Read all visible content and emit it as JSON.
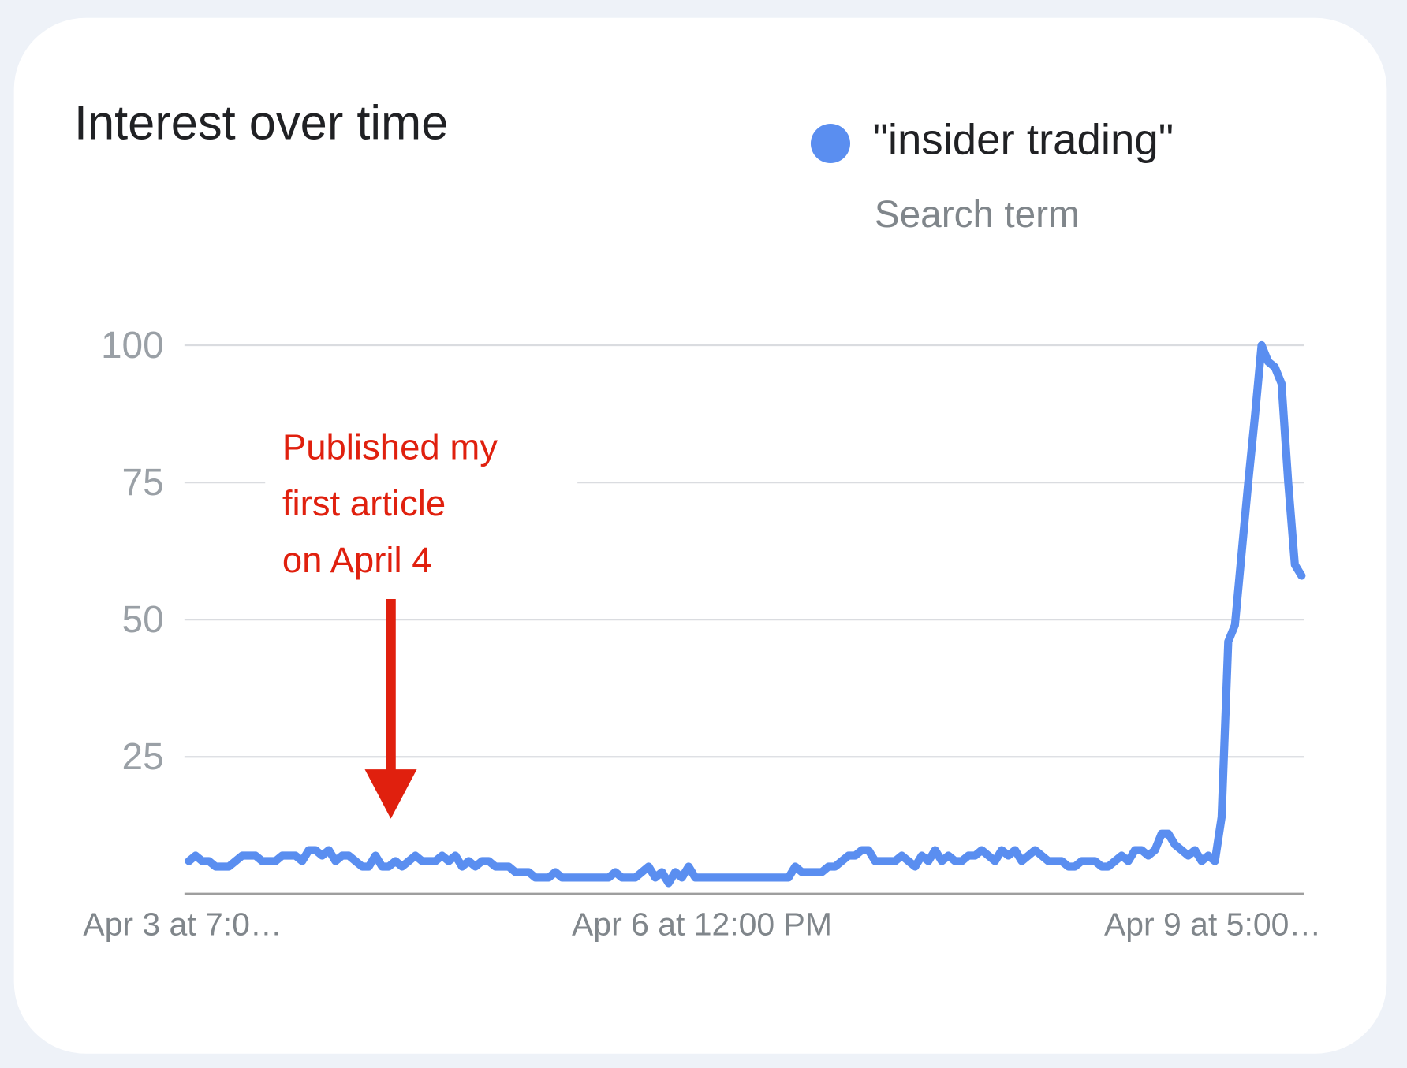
{
  "chart_data": {
    "type": "line",
    "title": "Interest over time",
    "legend_subtitle": "Search term",
    "annotation": [
      "Published my",
      "first article",
      "on April 4"
    ],
    "categories": [
      "Apr 3 at 7:0…",
      null,
      null,
      null,
      null,
      null,
      null,
      null,
      null,
      null,
      null,
      null,
      null,
      null,
      null,
      null,
      null,
      null,
      null,
      null,
      null,
      null,
      null,
      null,
      null,
      null,
      null,
      null,
      null,
      null,
      null,
      null,
      null,
      null,
      null,
      null,
      null,
      null,
      null,
      null,
      null,
      null,
      null,
      null,
      null,
      null,
      null,
      null,
      null,
      null,
      null,
      null,
      null,
      null,
      null,
      null,
      null,
      null,
      null,
      null,
      null,
      null,
      null,
      null,
      null,
      null,
      null,
      null,
      null,
      null,
      null,
      null,
      null,
      null,
      null,
      null,
      null,
      "Apr 6 at 12:00 PM",
      null,
      null,
      null,
      null,
      null,
      null,
      null,
      null,
      null,
      null,
      null,
      null,
      null,
      null,
      null,
      null,
      null,
      null,
      null,
      null,
      null,
      null,
      null,
      null,
      null,
      null,
      null,
      null,
      null,
      null,
      null,
      null,
      null,
      null,
      null,
      null,
      null,
      null,
      null,
      null,
      null,
      null,
      null,
      null,
      null,
      null,
      null,
      null,
      null,
      null,
      null,
      null,
      null,
      null,
      null,
      null,
      null,
      null,
      null,
      null,
      null,
      null,
      null,
      null,
      null,
      null,
      null,
      null,
      null,
      null,
      null,
      null,
      null,
      null,
      null,
      null,
      "Apr 9 at 5:00…",
      null,
      null,
      null,
      null,
      null,
      null,
      null,
      null,
      null,
      null,
      null,
      null,
      null
    ],
    "series": [
      {
        "name": "\"insider trading\"",
        "color": "#5a8ef0",
        "values": [
          6,
          7,
          6,
          6,
          5,
          5,
          5,
          6,
          7,
          7,
          7,
          6,
          6,
          6,
          7,
          7,
          7,
          6,
          8,
          8,
          7,
          8,
          6,
          7,
          7,
          6,
          5,
          5,
          7,
          5,
          5,
          6,
          5,
          6,
          7,
          6,
          6,
          6,
          7,
          6,
          7,
          5,
          6,
          5,
          6,
          6,
          5,
          5,
          5,
          4,
          4,
          4,
          3,
          3,
          3,
          4,
          3,
          3,
          3,
          3,
          3,
          3,
          3,
          3,
          4,
          3,
          3,
          3,
          4,
          5,
          3,
          4,
          2,
          4,
          3,
          5,
          3,
          3,
          3,
          3,
          3,
          3,
          3,
          3,
          3,
          3,
          3,
          3,
          3,
          3,
          3,
          5,
          4,
          4,
          4,
          4,
          5,
          5,
          6,
          7,
          7,
          8,
          8,
          6,
          6,
          6,
          6,
          7,
          6,
          5,
          7,
          6,
          8,
          6,
          7,
          6,
          6,
          7,
          7,
          8,
          7,
          6,
          8,
          7,
          8,
          6,
          7,
          8,
          7,
          6,
          6,
          6,
          5,
          5,
          6,
          6,
          6,
          5,
          5,
          6,
          7,
          6,
          8,
          8,
          7,
          8,
          11,
          11,
          9,
          8,
          7,
          8,
          6,
          7,
          6,
          14,
          46,
          49,
          62,
          75,
          87,
          100,
          97,
          96,
          93,
          75,
          60,
          58
        ]
      }
    ],
    "ylim": [
      0,
      100
    ],
    "yticks": [
      25,
      50,
      75,
      100
    ],
    "grid": true
  }
}
